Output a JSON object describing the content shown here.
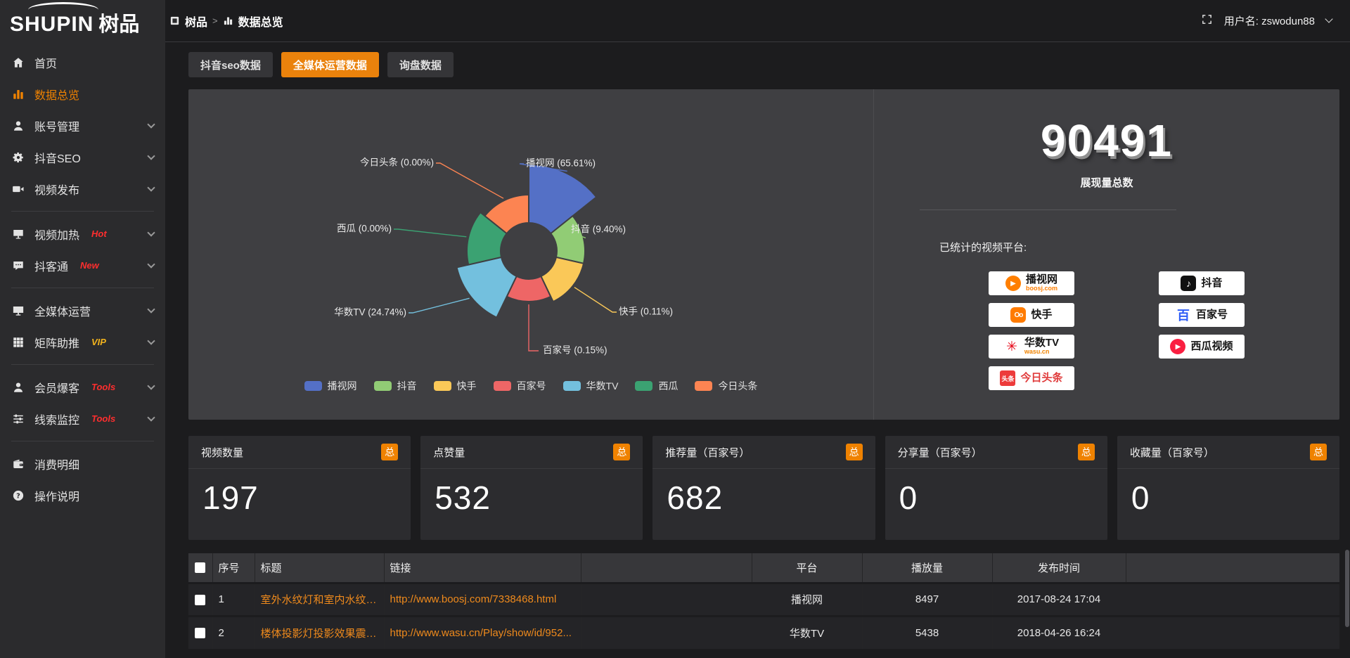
{
  "logo": {
    "en": "SHUPIN",
    "cn": "树品"
  },
  "topbar": {
    "breadcrumb_root": "树品",
    "breadcrumb_sep": ">",
    "breadcrumb_current": "数据总览",
    "username": "用户名: zswodun88"
  },
  "tabs": [
    {
      "label": "抖音seo数据",
      "active": false
    },
    {
      "label": "全媒体运营数据",
      "active": true
    },
    {
      "label": "询盘数据",
      "active": false
    }
  ],
  "sidebar": {
    "items": [
      {
        "id": "home",
        "label": "首页",
        "icon": "home"
      },
      {
        "id": "data-overview",
        "label": "数据总览",
        "icon": "bar-chart",
        "active": true
      },
      {
        "id": "account-management",
        "label": "账号管理",
        "icon": "user",
        "expandable": true
      },
      {
        "id": "douyin-seo",
        "label": "抖音SEO",
        "icon": "gear",
        "expandable": true
      },
      {
        "id": "video-publish",
        "label": "视频发布",
        "icon": "video",
        "expandable": true,
        "divider_after": true
      },
      {
        "id": "video-heating",
        "label": "视频加热",
        "icon": "screen",
        "badge": "Hot",
        "badge_color": "#ff2e2e",
        "expandable": true
      },
      {
        "id": "douketong",
        "label": "抖客通",
        "icon": "chat",
        "badge": "New",
        "badge_color": "#ff2e2e",
        "expandable": true,
        "divider_after": true
      },
      {
        "id": "omni-media-operation",
        "label": "全媒体运营",
        "icon": "monitor",
        "expandable": true
      },
      {
        "id": "matrix-boost",
        "label": "矩阵助推",
        "icon": "grid",
        "badge": "VIP",
        "badge_color": "#f2b31d",
        "expandable": true,
        "divider_after": true
      },
      {
        "id": "member-burst",
        "label": "会员爆客",
        "icon": "person",
        "badge": "Tools",
        "badge_color": "#ff2e2e",
        "expandable": true
      },
      {
        "id": "lead-monitor",
        "label": "线索监控",
        "icon": "sliders",
        "badge": "Tools",
        "badge_color": "#ff2e2e",
        "expandable": true,
        "divider_after": true
      },
      {
        "id": "consumption-details",
        "label": "消费明细",
        "icon": "wallet"
      },
      {
        "id": "operation-guide",
        "label": "操作说明",
        "icon": "question"
      }
    ]
  },
  "chart_data": {
    "type": "pie",
    "variant": "nightingale-rose",
    "title": "",
    "categories": [
      "播视网",
      "抖音",
      "快手",
      "百家号",
      "华数TV",
      "西瓜",
      "今日头条"
    ],
    "values": [
      65.61,
      9.4,
      0.11,
      0.15,
      24.74,
      0.0,
      0.0
    ],
    "unit": "percent",
    "labels": [
      "播视网 (65.61%)",
      "抖音 (9.40%)",
      "快手 (0.11%)",
      "百家号 (0.15%)",
      "华数TV (24.74%)",
      "西瓜 (0.00%)",
      "今日头条 (0.00%)"
    ],
    "colors": [
      "#5470c6",
      "#91cc75",
      "#fac858",
      "#ee6666",
      "#73c0de",
      "#3ba272",
      "#fc8452"
    ],
    "legend": [
      "播视网",
      "抖音",
      "快手",
      "百家号",
      "华数TV",
      "西瓜",
      "今日头条"
    ],
    "legend_position": "bottom",
    "start_angle": "top",
    "direction": "clockwise",
    "inner_radius_hint": 40,
    "radii_hint": [
      123,
      80,
      80,
      72,
      105,
      88,
      80
    ]
  },
  "summary": {
    "total_value": "90491",
    "total_label": "展现量总数",
    "platforms_title": "已统计的视频平台:",
    "platforms": [
      {
        "name": "播视网",
        "sub": "boosj.com",
        "sub_color": "#ff7f00",
        "icon": "boosj",
        "col": 0
      },
      {
        "name": "抖音",
        "icon": "douyin",
        "col": 1
      },
      {
        "name": "快手",
        "icon": "kuaishou",
        "col": 0
      },
      {
        "name": "百家号",
        "icon": "baijiahao",
        "col": 1
      },
      {
        "name": "华数TV",
        "sub": "wasu.cn",
        "sub_color": "#f08300",
        "icon": "wasu",
        "col": 0
      },
      {
        "name": "西瓜视频",
        "icon": "xigua",
        "col": 1
      },
      {
        "name": "今日头条",
        "name_color": "#e03a3a",
        "icon": "toutiao",
        "col": 0
      }
    ]
  },
  "stat_cards": [
    {
      "title": "视频数量",
      "badge": "总",
      "value": "197"
    },
    {
      "title": "点赞量",
      "badge": "总",
      "value": "532"
    },
    {
      "title": "推荐量（百家号）",
      "badge": "总",
      "value": "682"
    },
    {
      "title": "分享量（百家号）",
      "badge": "总",
      "value": "0"
    },
    {
      "title": "收藏量（百家号）",
      "badge": "总",
      "value": "0"
    }
  ],
  "table": {
    "headers": [
      "序号",
      "标题",
      "链接",
      "平台",
      "播放量",
      "发布时间"
    ],
    "rows": [
      {
        "index": "1",
        "title": "室外水纹灯和室内水纹灯的区别和简介",
        "link": "http://www.boosj.com/7338468.html",
        "platform": "播视网",
        "views": "8497",
        "published": "2017-08-24 17:04",
        "checked": false
      },
      {
        "index": "2",
        "title": "楼体投影灯投影效果震撼上市",
        "link": "http://www.wasu.cn/Play/show/id/952...",
        "platform": "华数TV",
        "views": "5438",
        "published": "2018-04-26 16:24",
        "checked": false
      }
    ]
  },
  "colors": {
    "accent": "#ef8201",
    "link": "#ef8a1c",
    "panel": "#3f3f42"
  }
}
